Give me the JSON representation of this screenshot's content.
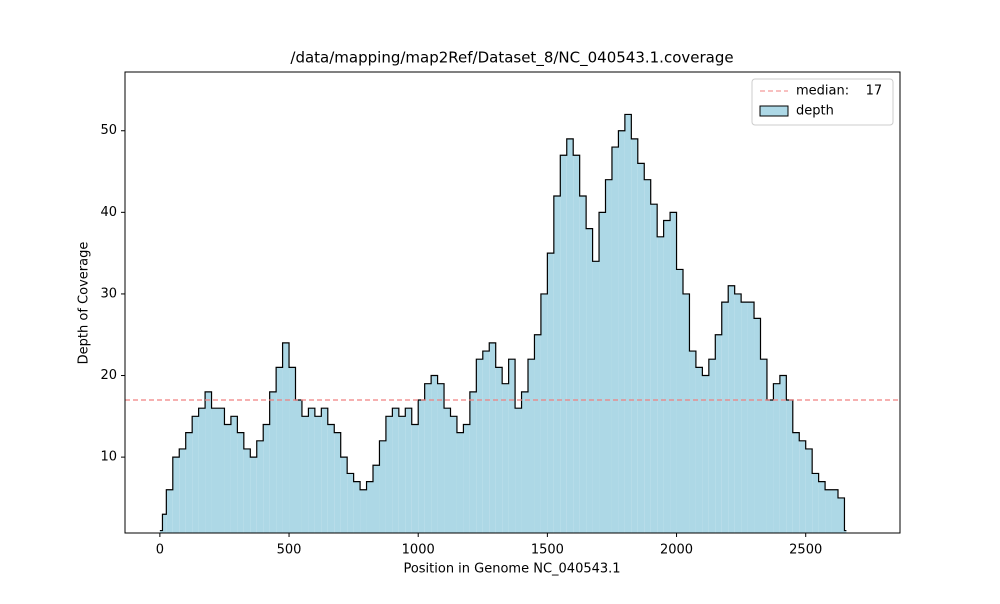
{
  "chart_data": {
    "type": "step-area",
    "title": "/data/mapping/map2Ref/Dataset_8/NC_040543.1.coverage",
    "x_label": "Position in Genome NC_040543.1",
    "y_label": "Depth of Coverage",
    "x": [
      0,
      10,
      25,
      50,
      75,
      100,
      125,
      150,
      175,
      200,
      225,
      250,
      275,
      300,
      325,
      350,
      375,
      400,
      425,
      450,
      475,
      500,
      525,
      550,
      575,
      600,
      625,
      650,
      675,
      700,
      725,
      750,
      775,
      800,
      825,
      850,
      875,
      900,
      925,
      950,
      975,
      1000,
      1025,
      1050,
      1075,
      1100,
      1125,
      1150,
      1175,
      1200,
      1225,
      1250,
      1275,
      1300,
      1325,
      1350,
      1375,
      1400,
      1425,
      1450,
      1475,
      1500,
      1525,
      1550,
      1575,
      1600,
      1625,
      1650,
      1675,
      1700,
      1725,
      1750,
      1775,
      1800,
      1825,
      1850,
      1875,
      1900,
      1925,
      1950,
      1975,
      2000,
      2025,
      2050,
      2075,
      2100,
      2125,
      2150,
      2175,
      2200,
      2225,
      2250,
      2275,
      2300,
      2325,
      2350,
      2375,
      2400,
      2425,
      2450,
      2475,
      2500,
      2525,
      2550,
      2575,
      2600,
      2625,
      2650
    ],
    "series": [
      {
        "name": "depth",
        "color": "#add8e6",
        "edge_color": "#000000",
        "values": [
          1,
          3,
          6,
          10,
          11,
          13,
          15,
          16,
          18,
          16,
          16,
          14,
          15,
          13,
          11,
          10,
          12,
          14,
          18,
          21,
          24,
          21,
          17,
          15,
          16,
          15,
          16,
          14,
          13,
          10,
          8,
          7,
          6,
          7,
          9,
          12,
          15,
          16,
          15,
          16,
          14,
          17,
          19,
          20,
          19,
          16,
          15,
          13,
          14,
          18,
          22,
          23,
          24,
          21,
          19,
          22,
          16,
          18,
          22,
          25,
          30,
          35,
          42,
          47,
          49,
          47,
          42,
          38,
          34,
          40,
          44,
          48,
          50,
          52,
          49,
          46,
          44,
          41,
          37,
          39,
          40,
          33,
          30,
          23,
          21,
          20,
          22,
          25,
          29,
          31,
          30,
          29,
          29,
          27,
          22,
          17,
          19,
          20,
          17,
          13,
          12,
          11,
          8,
          7,
          6,
          6,
          5,
          1
        ]
      }
    ],
    "median": {
      "label": "median:    17",
      "value": 17,
      "color": "#f08080"
    },
    "xlim": [
      -135,
      2865
    ],
    "ylim": [
      0.7,
      57.2
    ],
    "xticks": [
      0,
      500,
      1000,
      1500,
      2000,
      2500
    ],
    "yticks": [
      10,
      20,
      30,
      40,
      50
    ],
    "legend": "upper right"
  }
}
